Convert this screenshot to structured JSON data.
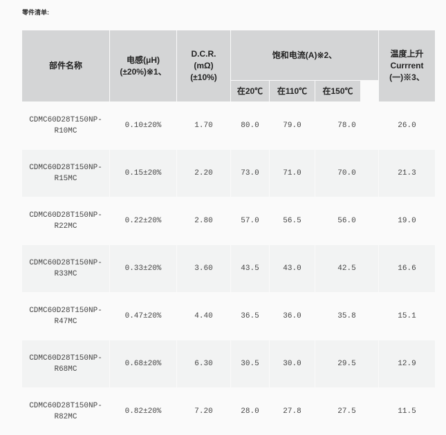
{
  "title": "零件清单:",
  "headers": {
    "name": "部件名称",
    "inductance": [
      "电感(μH)",
      "(±20%)※1、"
    ],
    "dcr": [
      "D.C.R.",
      "(mΩ)",
      "(±10%)"
    ],
    "saturation": "饱和电流(A)※2、",
    "sat_20": "在20℃",
    "sat_110": "在110℃",
    "sat_150": "在150℃",
    "temp_rise": [
      "温度上升",
      "Currrent",
      "(一)※3、"
    ]
  },
  "rows": [
    {
      "name": [
        "CDMC60D28T150NP-",
        "R10MC"
      ],
      "inductance": "0.10±20%",
      "dcr": "1.70",
      "sat_20": "80.0",
      "sat_110": "79.0",
      "sat_150": "78.0",
      "temp_rise": "26.0"
    },
    {
      "name": [
        "CDMC60D28T150NP-",
        "R15MC"
      ],
      "inductance": "0.15±20%",
      "dcr": "2.20",
      "sat_20": "73.0",
      "sat_110": "71.0",
      "sat_150": "70.0",
      "temp_rise": "21.3"
    },
    {
      "name": [
        "CDMC60D28T150NP-",
        "R22MC"
      ],
      "inductance": "0.22±20%",
      "dcr": "2.80",
      "sat_20": "57.0",
      "sat_110": "56.5",
      "sat_150": "56.0",
      "temp_rise": "19.0"
    },
    {
      "name": [
        "CDMC60D28T150NP-",
        "R33MC"
      ],
      "inductance": "0.33±20%",
      "dcr": "3.60",
      "sat_20": "43.5",
      "sat_110": "43.0",
      "sat_150": "42.5",
      "temp_rise": "16.6"
    },
    {
      "name": [
        "CDMC60D28T150NP-",
        "R47MC"
      ],
      "inductance": "0.47±20%",
      "dcr": "4.40",
      "sat_20": "36.5",
      "sat_110": "36.0",
      "sat_150": "35.8",
      "temp_rise": "15.1"
    },
    {
      "name": [
        "CDMC60D28T150NP-",
        "R68MC"
      ],
      "inductance": "0.68±20%",
      "dcr": "6.30",
      "sat_20": "30.5",
      "sat_110": "30.0",
      "sat_150": "29.5",
      "temp_rise": "12.9"
    },
    {
      "name": [
        "CDMC60D28T150NP-",
        "R82MC"
      ],
      "inductance": "0.82±20%",
      "dcr": "7.20",
      "sat_20": "28.0",
      "sat_110": "27.8",
      "sat_150": "27.5",
      "temp_rise": "11.5"
    }
  ]
}
